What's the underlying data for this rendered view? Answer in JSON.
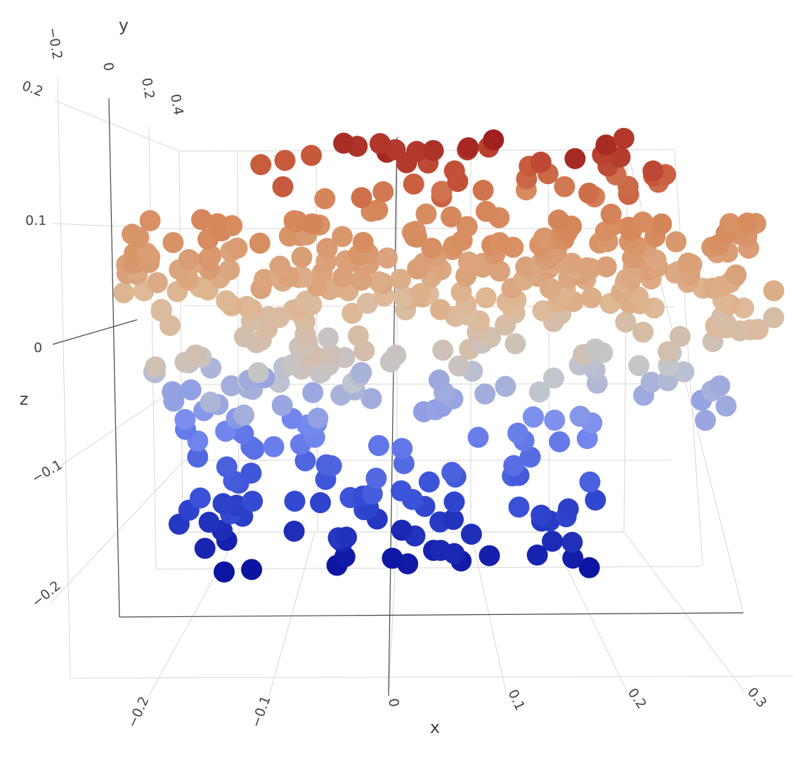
{
  "chart_data": {
    "type": "scatter3d",
    "title": "",
    "axes": {
      "x": {
        "title": "x",
        "ticks": [
          "−0.2",
          "−0.1",
          "0",
          "0.1",
          "0.2",
          "0.3"
        ]
      },
      "y": {
        "title": "y",
        "ticks": [
          "−0.2",
          "0",
          "0.2",
          "0.4"
        ]
      },
      "z": {
        "title": "z",
        "ticks": [
          "0.2",
          "0.1",
          "0",
          "−0.1",
          "−0.2"
        ]
      }
    },
    "grid": true,
    "legend": "none",
    "marker": {
      "colorscale": "coolwarm (blue = low z, red = high z)",
      "color_by": "z"
    },
    "colors": {
      "low": "#0a12a0",
      "mid": "#c8c8c8",
      "high": "#a01e1e",
      "grid": "#d6d6d6",
      "text": "#444444"
    },
    "z_range": [
      -0.2,
      0.2
    ],
    "point_count": 500
  }
}
